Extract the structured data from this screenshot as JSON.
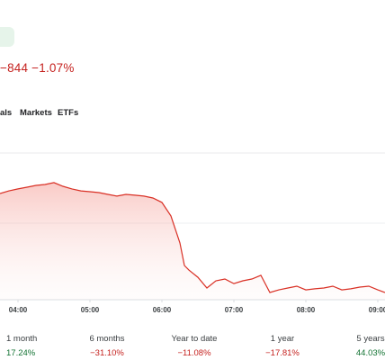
{
  "header": {
    "change": "−844 −1.07%"
  },
  "tabs": [
    "als",
    "Markets",
    "ETFs"
  ],
  "chart_data": {
    "type": "line",
    "x": [
      3.75,
      3.875,
      4,
      4.125,
      4.25,
      4.375,
      4.5,
      4.625,
      4.75,
      4.875,
      5,
      5.125,
      5.25,
      5.375,
      5.5,
      5.625,
      5.75,
      5.875,
      6,
      6.125,
      6.25,
      6.3125,
      6.375,
      6.5,
      6.625,
      6.75,
      6.875,
      7,
      7.125,
      7.25,
      7.375,
      7.5,
      7.625,
      7.75,
      7.875,
      8,
      8.125,
      8.25,
      8.375,
      8.5,
      8.625,
      8.75,
      8.875,
      9,
      9.1
    ],
    "series": [
      {
        "color": "#d93025",
        "values": [
          72.4,
          74.2,
          75.5,
          76.7,
          77.9,
          78.5,
          79.8,
          77.3,
          75.5,
          74.2,
          73.6,
          73.0,
          71.8,
          70.6,
          71.8,
          71.2,
          70.6,
          69.3,
          66.3,
          57.1,
          38.7,
          23.3,
          20.2,
          15.3,
          8.0,
          12.9,
          14.1,
          11.0,
          12.9,
          14.1,
          16.6,
          4.9,
          6.7,
          8.0,
          9.2,
          6.7,
          7.4,
          8.0,
          9.2,
          6.7,
          7.4,
          8.6,
          9.2,
          6.7,
          4.9
        ]
      }
    ],
    "xlim": [
      3.75,
      9.1
    ],
    "ylim": [
      0,
      100
    ],
    "xticks": [
      {
        "value": 4,
        "label": "04:00"
      },
      {
        "value": 5,
        "label": "05:00"
      },
      {
        "value": 6,
        "label": "06:00"
      },
      {
        "value": 7,
        "label": "07:00"
      },
      {
        "value": 8,
        "label": "08:00"
      },
      {
        "value": 9,
        "label": "09:00"
      }
    ]
  },
  "performance": [
    {
      "period": "1 month",
      "change": "17.24%",
      "color": "#137333"
    },
    {
      "period": "6 months",
      "change": "−31.10%",
      "color": "#c5221f"
    },
    {
      "period": "Year to date",
      "change": "−11.08%",
      "color": "#c5221f"
    },
    {
      "period": "1 year",
      "change": "−17.81%",
      "color": "#c5221f"
    },
    {
      "period": "5 years",
      "change": "44.03%",
      "color": "#137333"
    }
  ]
}
